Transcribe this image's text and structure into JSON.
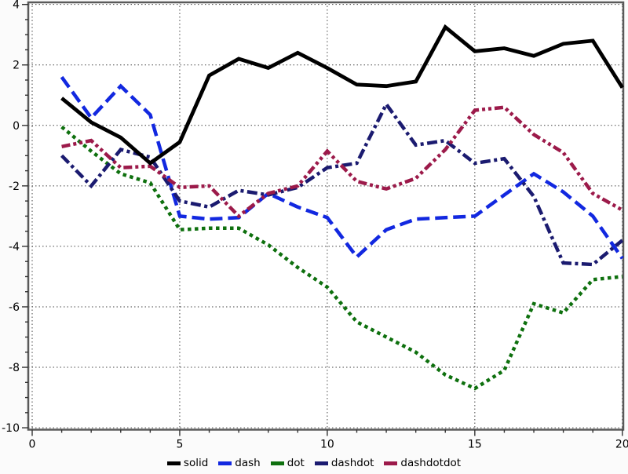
{
  "chart_data": {
    "type": "line",
    "title": "",
    "xlabel": "",
    "ylabel": "",
    "xlim": [
      0,
      20
    ],
    "ylim": [
      -10,
      4
    ],
    "x_major_ticks": [
      0,
      5,
      10,
      15,
      20
    ],
    "x_minor_step": 1,
    "y_major_ticks": [
      4,
      2,
      0,
      -2,
      -4,
      -6,
      -8,
      -10
    ],
    "y_minor_step": 0.5,
    "grid": "dotted lines on major ticks",
    "legend_position": "bottom-center",
    "x": [
      1,
      2,
      3,
      4,
      5,
      6,
      7,
      8,
      9,
      10,
      11,
      12,
      13,
      14,
      15,
      16,
      17,
      18,
      19,
      20
    ],
    "series": [
      {
        "name": "solid",
        "style": "solid",
        "color": "#000000",
        "values": [
          0.9,
          0.1,
          -0.4,
          -1.25,
          -0.55,
          1.65,
          2.2,
          1.9,
          2.4,
          1.9,
          1.35,
          1.3,
          1.45,
          3.25,
          2.45,
          2.55,
          2.3,
          2.7,
          2.8,
          1.25
        ]
      },
      {
        "name": "dash",
        "style": "dash",
        "color": "#1228e0",
        "values": [
          1.6,
          0.25,
          1.3,
          0.35,
          -3.0,
          -3.1,
          -3.05,
          -2.25,
          -2.7,
          -3.05,
          -4.35,
          -3.45,
          -3.1,
          -3.05,
          -3.0,
          -2.3,
          -1.6,
          -2.2,
          -3.0,
          -4.4
        ]
      },
      {
        "name": "dot",
        "style": "dot",
        "color": "#0e700e",
        "values": [
          -0.05,
          -0.85,
          -1.6,
          -1.9,
          -3.45,
          -3.4,
          -3.4,
          -3.95,
          -4.7,
          -5.35,
          -6.5,
          -7.0,
          -7.5,
          -8.25,
          -8.7,
          -8.1,
          -5.9,
          -6.2,
          -5.1,
          -5.0
        ]
      },
      {
        "name": "dashdot",
        "style": "dashdot",
        "color": "#1b1b70",
        "values": [
          -1.0,
          -2.0,
          -0.8,
          -1.05,
          -2.5,
          -2.7,
          -2.15,
          -2.3,
          -2.05,
          -1.4,
          -1.25,
          0.7,
          -0.65,
          -0.5,
          -1.25,
          -1.1,
          -2.35,
          -4.55,
          -4.6,
          -3.8
        ]
      },
      {
        "name": "dashdotdot",
        "style": "dashdotdot",
        "color": "#9c1a4a",
        "values": [
          -0.7,
          -0.5,
          -1.4,
          -1.35,
          -2.05,
          -2.0,
          -3.0,
          -2.25,
          -2.0,
          -0.85,
          -1.85,
          -2.1,
          -1.75,
          -0.8,
          0.5,
          0.6,
          -0.3,
          -0.9,
          -2.25,
          -2.8
        ]
      }
    ],
    "frame_color": "#5a5a5a",
    "grid_color": "#444444",
    "plot_bg": "#ffffff"
  }
}
